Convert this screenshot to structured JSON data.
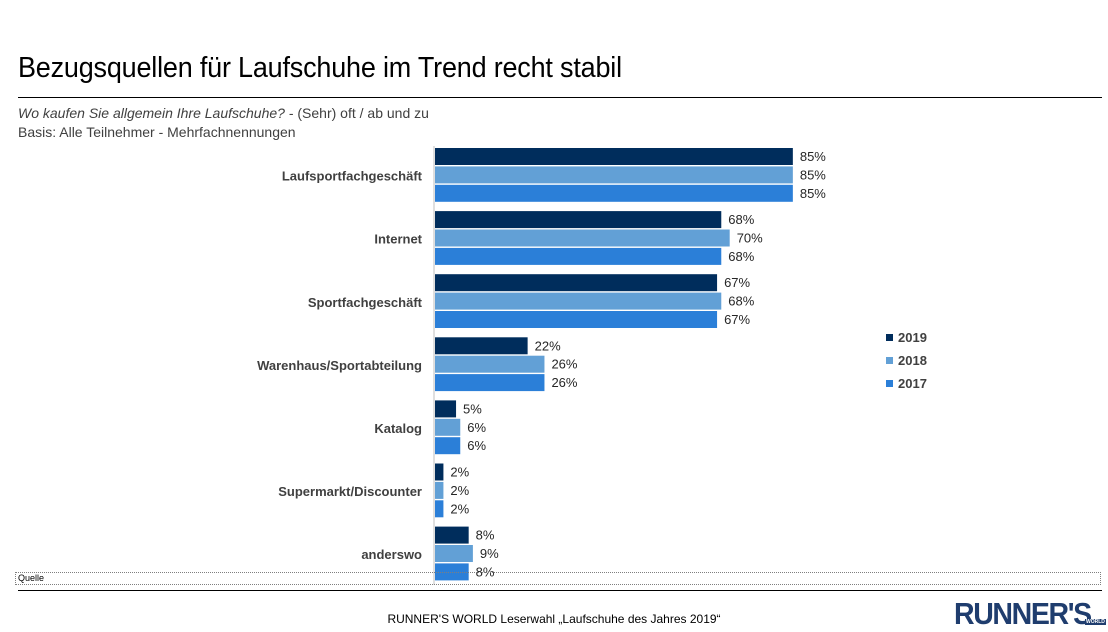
{
  "title": "Bezugsquellen für Laufschuhe im Trend recht stabil",
  "subtitle_question": "Wo kaufen Sie allgemein Ihre Laufschuhe?",
  "subtitle_rest": " - (Sehr) oft / ab und zu",
  "basis": "Basis: Alle Teilnehmer - Mehrfachnennungen",
  "quelle": "Quelle",
  "footer": "RUNNER'S WORLD Leserwahl „Laufschuhe des Jahres 2019“",
  "logo_text": "RUNNER'S",
  "logo_small": "WORLD",
  "colors": {
    "2019": "#002d5c",
    "2018": "#62a0d6",
    "2017": "#2b7fd8"
  },
  "chart_data": {
    "type": "bar",
    "orientation": "horizontal",
    "categories": [
      "Laufsportfachgeschäft",
      "Internet",
      "Sportfachgeschäft",
      "Warenhaus/Sportabteilung",
      "Katalog",
      "Supermarkt/Discounter",
      "anderswo"
    ],
    "series": [
      {
        "name": "2019",
        "values": [
          85,
          68,
          67,
          22,
          5,
          2,
          8
        ]
      },
      {
        "name": "2018",
        "values": [
          85,
          70,
          68,
          26,
          6,
          2,
          9
        ]
      },
      {
        "name": "2017",
        "values": [
          85,
          68,
          67,
          26,
          6,
          2,
          8
        ]
      }
    ],
    "value_suffix": "%",
    "xlim": [
      0,
      100
    ],
    "grid": false,
    "legend": "right"
  }
}
